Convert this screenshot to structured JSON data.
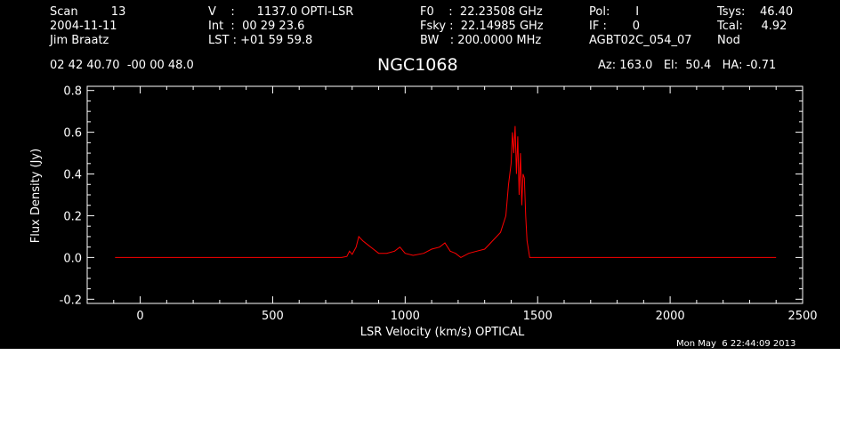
{
  "header": {
    "col1": [
      "Scan         13",
      "2004-11-11",
      "Jim Braatz"
    ],
    "col2": [
      "V    :      1137.0 OPTI-LSR",
      "Int  :  00 29 23.6",
      "LST : +01 59 59.8"
    ],
    "col3": [
      "F0    :  22.23508 GHz",
      "Fsky :  22.14985 GHz",
      "BW   : 200.0000 MHz"
    ],
    "col4": [
      "Pol:       I",
      "IF :       0",
      "AGBT02C_054_07"
    ],
    "col5": [
      "Tsys:    46.40",
      "Tcal:     4.92",
      "Nod"
    ],
    "coords": "02 42 40.70  -00 00 48.0",
    "source": "NGC1068",
    "pointing": "Az: 163.0   El:  50.4   HA: -0.71",
    "timestamp": "Mon May  6 22:44:09 2013"
  },
  "chart_data": {
    "type": "line",
    "title": "NGC1068",
    "xlabel": "LSR Velocity (km/s) OPTICAL",
    "ylabel": "Flux Density (Jy)",
    "xlim": [
      -200,
      2500
    ],
    "ylim": [
      -0.22,
      0.82
    ],
    "xticks": [
      "0",
      "500",
      "1000",
      "1500",
      "2000",
      "2500"
    ],
    "xtick_values": [
      0,
      500,
      1000,
      1500,
      2000,
      2500
    ],
    "yticks": [
      "-0.2",
      "0.0",
      "0.2",
      "0.4",
      "0.6",
      "0.8"
    ],
    "ytick_values": [
      -0.2,
      0.0,
      0.2,
      0.4,
      0.6,
      0.8
    ],
    "grid": false,
    "series": [
      {
        "color": "#ff0000",
        "x": [
          -95,
          0,
          200,
          400,
          600,
          700,
          760,
          780,
          790,
          800,
          815,
          825,
          840,
          860,
          880,
          900,
          930,
          960,
          980,
          1000,
          1030,
          1070,
          1100,
          1130,
          1150,
          1170,
          1190,
          1210,
          1240,
          1270,
          1300,
          1330,
          1360,
          1380,
          1390,
          1400,
          1405,
          1410,
          1415,
          1420,
          1425,
          1430,
          1435,
          1440,
          1445,
          1450,
          1455,
          1460,
          1470,
          1500,
          1700,
          1900,
          2100,
          2300,
          2400
        ],
        "y": [
          0.0,
          0.0,
          0.0,
          0.0,
          0.0,
          0.0,
          0.0,
          0.005,
          0.03,
          0.015,
          0.05,
          0.1,
          0.08,
          0.06,
          0.04,
          0.02,
          0.02,
          0.03,
          0.05,
          0.02,
          0.01,
          0.02,
          0.04,
          0.05,
          0.07,
          0.03,
          0.02,
          0.0,
          0.02,
          0.03,
          0.04,
          0.08,
          0.12,
          0.2,
          0.35,
          0.45,
          0.6,
          0.5,
          0.63,
          0.4,
          0.58,
          0.3,
          0.5,
          0.25,
          0.4,
          0.38,
          0.2,
          0.08,
          0.0,
          0.0,
          0.0,
          0.0,
          0.0,
          0.0,
          0.0
        ]
      }
    ]
  }
}
